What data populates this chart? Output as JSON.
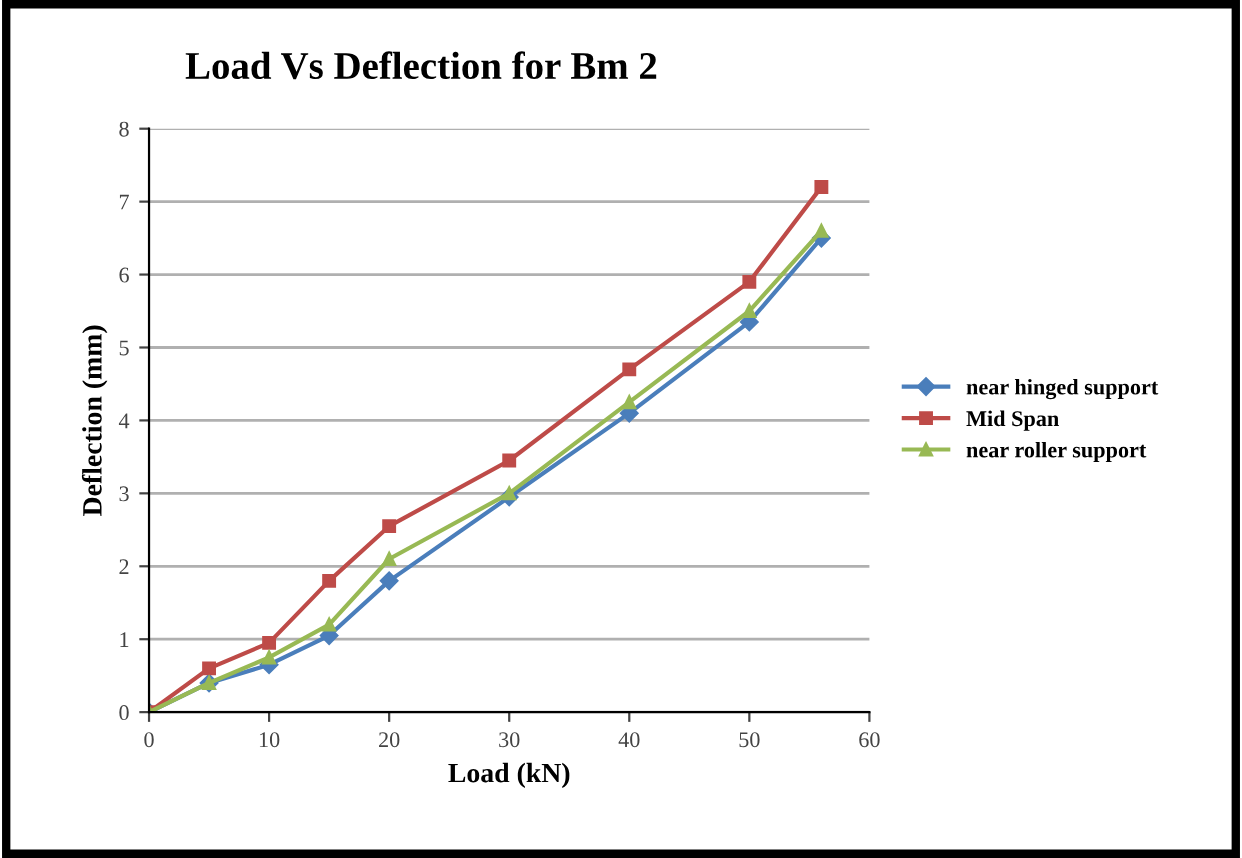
{
  "chart_data": {
    "type": "line",
    "title": "Load Vs Deflection for Bm 2",
    "xlabel": "Load (kN)",
    "ylabel": "Deflection (mm)",
    "x": [
      0,
      5,
      10,
      15,
      20,
      30,
      40,
      50,
      56
    ],
    "series": [
      {
        "name": "near hinged support",
        "color": "#4a7ebb",
        "marker": "diamond",
        "values": [
          0,
          0.4,
          0.65,
          1.05,
          1.8,
          2.95,
          4.1,
          5.35,
          6.5
        ]
      },
      {
        "name": "Mid Span",
        "color": "#be4b48",
        "marker": "square",
        "values": [
          0,
          0.6,
          0.95,
          1.8,
          2.55,
          3.45,
          4.7,
          5.9,
          7.2
        ]
      },
      {
        "name": "near roller support",
        "color": "#98b954",
        "marker": "triangle",
        "values": [
          0,
          0.4,
          0.75,
          1.2,
          2.1,
          3.0,
          4.25,
          5.5,
          6.6
        ]
      }
    ],
    "xlim": [
      0,
      60
    ],
    "xticks": [
      0,
      10,
      20,
      30,
      40,
      50,
      60
    ],
    "ylim": [
      0,
      8
    ],
    "yticks": [
      0,
      1,
      2,
      3,
      4,
      5,
      6,
      7,
      8
    ],
    "grid": "y",
    "legend": "right",
    "line_style": "solid"
  }
}
